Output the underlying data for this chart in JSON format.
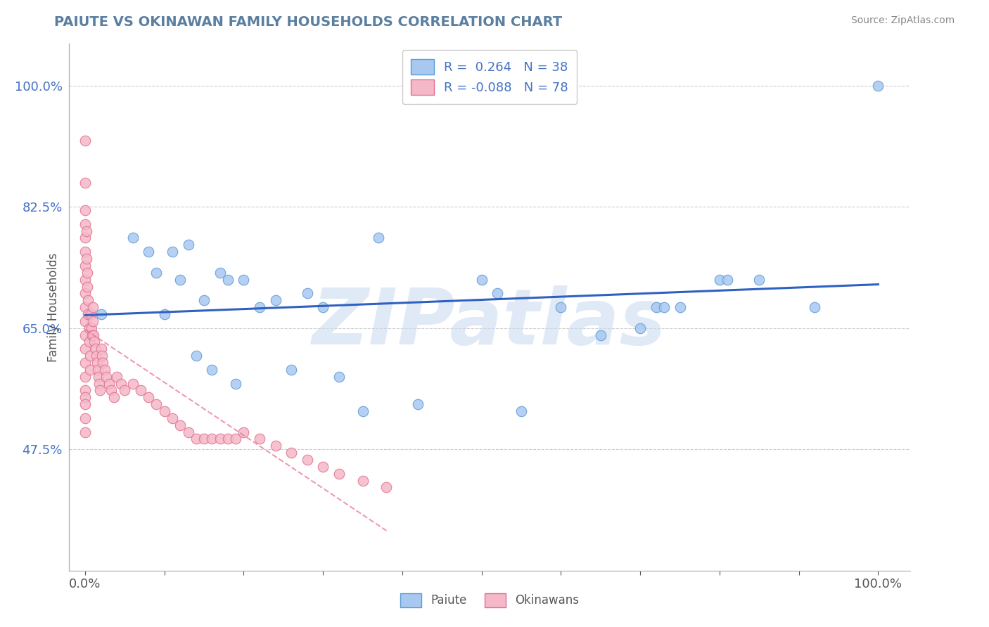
{
  "title": "PAIUTE VS OKINAWAN FAMILY HOUSEHOLDS CORRELATION CHART",
  "source": "Source: ZipAtlas.com",
  "ylabel": "Family Households",
  "xlim": [
    -0.02,
    1.04
  ],
  "ylim": [
    0.3,
    1.06
  ],
  "x_tick_positions": [
    0.0,
    0.1,
    0.2,
    0.3,
    0.4,
    0.5,
    0.6,
    0.7,
    0.8,
    0.9,
    1.0
  ],
  "x_tick_labels": [
    "0.0%",
    "",
    "",
    "",
    "",
    "",
    "",
    "",
    "",
    "",
    "100.0%"
  ],
  "y_tick_positions": [
    0.475,
    0.65,
    0.825,
    1.0
  ],
  "y_tick_labels": [
    "47.5%",
    "65.0%",
    "82.5%",
    "100.0%"
  ],
  "paiute_x": [
    0.02,
    0.06,
    0.08,
    0.09,
    0.11,
    0.12,
    0.13,
    0.15,
    0.17,
    0.18,
    0.2,
    0.22,
    0.24,
    0.28,
    0.3,
    0.37,
    0.5,
    0.52,
    0.72,
    0.73,
    0.8,
    0.81,
    1.0,
    0.1,
    0.14,
    0.16,
    0.19,
    0.26,
    0.32,
    0.35,
    0.42,
    0.55,
    0.6,
    0.65,
    0.7,
    0.75,
    0.85,
    0.92
  ],
  "paiute_y": [
    0.67,
    0.78,
    0.76,
    0.73,
    0.76,
    0.72,
    0.77,
    0.69,
    0.73,
    0.72,
    0.72,
    0.68,
    0.69,
    0.7,
    0.68,
    0.78,
    0.72,
    0.7,
    0.68,
    0.68,
    0.72,
    0.72,
    1.0,
    0.67,
    0.61,
    0.59,
    0.57,
    0.59,
    0.58,
    0.53,
    0.54,
    0.53,
    0.68,
    0.64,
    0.65,
    0.68,
    0.72,
    0.68
  ],
  "okinawan_x": [
    0.0,
    0.0,
    0.0,
    0.0,
    0.0,
    0.0,
    0.0,
    0.0,
    0.0,
    0.0,
    0.0,
    0.0,
    0.0,
    0.0,
    0.0,
    0.0,
    0.0,
    0.0,
    0.0,
    0.0,
    0.002,
    0.002,
    0.003,
    0.003,
    0.004,
    0.004,
    0.005,
    0.005,
    0.006,
    0.006,
    0.007,
    0.008,
    0.009,
    0.01,
    0.01,
    0.011,
    0.012,
    0.013,
    0.014,
    0.015,
    0.016,
    0.017,
    0.018,
    0.019,
    0.02,
    0.021,
    0.022,
    0.025,
    0.027,
    0.03,
    0.033,
    0.036,
    0.04,
    0.045,
    0.05,
    0.06,
    0.07,
    0.08,
    0.09,
    0.1,
    0.11,
    0.12,
    0.13,
    0.14,
    0.15,
    0.16,
    0.17,
    0.18,
    0.19,
    0.2,
    0.22,
    0.24,
    0.26,
    0.28,
    0.3,
    0.32,
    0.35,
    0.38
  ],
  "okinawan_y": [
    0.92,
    0.86,
    0.82,
    0.8,
    0.78,
    0.76,
    0.74,
    0.72,
    0.7,
    0.68,
    0.66,
    0.64,
    0.62,
    0.6,
    0.58,
    0.56,
    0.55,
    0.54,
    0.52,
    0.5,
    0.79,
    0.75,
    0.73,
    0.71,
    0.69,
    0.67,
    0.65,
    0.63,
    0.61,
    0.59,
    0.67,
    0.65,
    0.64,
    0.68,
    0.66,
    0.64,
    0.63,
    0.62,
    0.61,
    0.6,
    0.59,
    0.58,
    0.57,
    0.56,
    0.62,
    0.61,
    0.6,
    0.59,
    0.58,
    0.57,
    0.56,
    0.55,
    0.58,
    0.57,
    0.56,
    0.57,
    0.56,
    0.55,
    0.54,
    0.53,
    0.52,
    0.51,
    0.5,
    0.49,
    0.49,
    0.49,
    0.49,
    0.49,
    0.49,
    0.5,
    0.49,
    0.48,
    0.47,
    0.46,
    0.45,
    0.44,
    0.43,
    0.42
  ],
  "paiute_color": "#A8C8F0",
  "okinawan_color": "#F5B8C8",
  "paiute_edge_color": "#5B9BD5",
  "okinawan_edge_color": "#E07090",
  "trend_paiute_color": "#3060C0",
  "trend_okinawan_color": "#E87090",
  "legend_label_1": "R =  0.264   N = 38",
  "legend_label_2": "R = -0.088   N = 78",
  "watermark": "ZIPatlas",
  "background_color": "#FFFFFF",
  "grid_color": "#CCCCCC"
}
